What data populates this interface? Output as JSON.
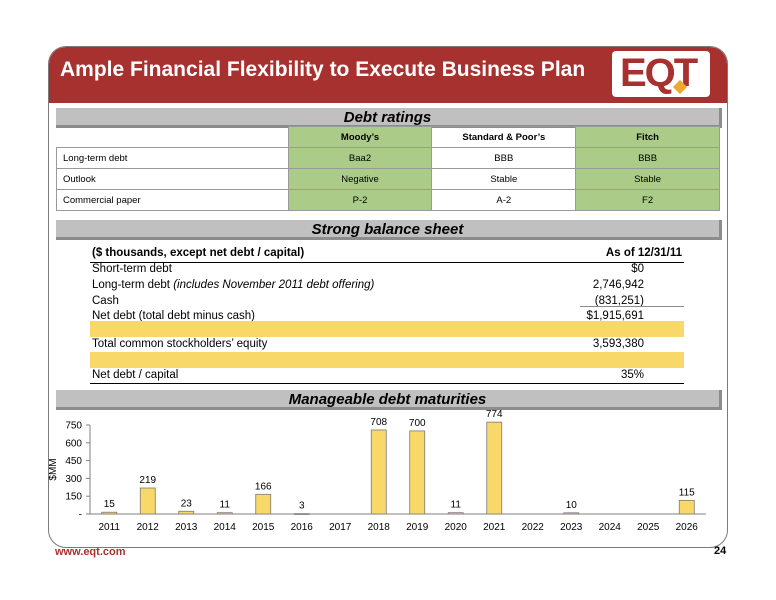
{
  "header": {
    "title": "Ample Financial Flexibility to Execute Business Plan",
    "logo_text": "EQT"
  },
  "ratings": {
    "section_title": "Debt ratings",
    "columns": [
      "Moody’s",
      "Standard & Poor’s",
      "Fitch"
    ],
    "rows": [
      {
        "label": "Long-term debt",
        "values": [
          "Baa2",
          "BBB",
          "BBB"
        ]
      },
      {
        "label": "Outlook",
        "values": [
          "Negative",
          "Stable",
          "Stable"
        ]
      },
      {
        "label": "Commercial paper",
        "values": [
          "P-2",
          "A-2",
          "F2"
        ]
      }
    ]
  },
  "balance_sheet": {
    "section_title": "Strong balance sheet",
    "header_label": "($ thousands, except net debt / capital)",
    "header_value": "As of 12/31/11",
    "rows": {
      "short_term_debt": {
        "label": "Short-term debt",
        "value": "$0"
      },
      "long_term_debt": {
        "label": "Long-term debt",
        "note": "(includes November 2011 debt offering)",
        "value": "2,746,942"
      },
      "cash": {
        "label": "Cash",
        "value": "(831,251)"
      },
      "net_debt": {
        "label": "Net debt (total debt minus cash)",
        "value": "$1,915,691"
      },
      "equity": {
        "label": "Total common stockholders’ equity",
        "value": "3,593,380"
      },
      "net_debt_capital": {
        "label": "Net debt / capital",
        "value": "35%"
      }
    }
  },
  "maturities": {
    "section_title": "Manageable debt maturities"
  },
  "chart_data": {
    "type": "bar",
    "title": "Manageable debt maturities",
    "ylabel": "$MM",
    "xlabel": "",
    "categories": [
      "2011",
      "2012",
      "2013",
      "2014",
      "2015",
      "2016",
      "2017",
      "2018",
      "2019",
      "2020",
      "2021",
      "2022",
      "2023",
      "2024",
      "2025",
      "2026"
    ],
    "values": [
      15,
      219,
      23,
      11,
      166,
      3,
      null,
      708,
      700,
      11,
      774,
      null,
      10,
      null,
      null,
      115
    ],
    "data_labels": [
      "15",
      "219",
      "23",
      "11",
      "166",
      "3",
      "",
      "708",
      "700",
      "11",
      "774",
      "",
      "10",
      "",
      "",
      "115"
    ],
    "ylim": [
      0,
      750
    ],
    "yticks": [
      0,
      150,
      300,
      450,
      600,
      750
    ],
    "ytick_labels": [
      "-",
      "150",
      "300",
      "450",
      "600",
      "750"
    ],
    "bar_color": "#f8d869",
    "grid": false,
    "legend": "none"
  },
  "footer": {
    "url": "www.eqt.com",
    "page_number": "24"
  },
  "colors": {
    "brand_red": "#a7312f",
    "ratings_green": "#aacc88",
    "highlight_yellow": "#f8d869",
    "section_gray": "#c0c0c0"
  }
}
